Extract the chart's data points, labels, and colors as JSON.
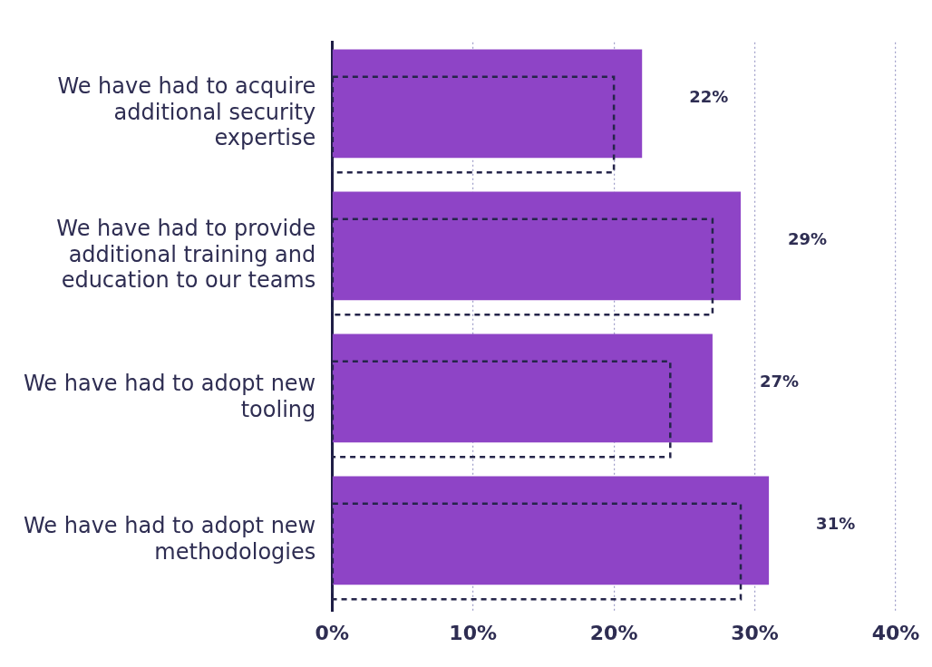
{
  "chart_data": {
    "type": "bar",
    "orientation": "horizontal",
    "categories": [
      "We have had to acquire additional security expertise",
      "We have had to provide additional training and education to our teams",
      "We have had to adopt new tooling",
      "We have had to adopt new methodologies"
    ],
    "series": [
      {
        "color": "#8e44c6",
        "values": [
          22,
          29,
          27,
          31
        ],
        "value_labels": [
          "22%",
          "29%",
          "27%",
          "31%"
        ]
      },
      {
        "color": "#25254a",
        "values": [
          20,
          27,
          24,
          29
        ],
        "line_style": "dashed"
      }
    ],
    "xlim": [
      0,
      40
    ],
    "xticks": [
      {
        "value": 0,
        "label": "0%"
      },
      {
        "value": 10,
        "label": "10%"
      },
      {
        "value": 20,
        "label": "20%"
      },
      {
        "value": 30,
        "label": "30%"
      },
      {
        "value": 40,
        "label": "40%"
      }
    ],
    "grid": "x",
    "legend": false
  }
}
